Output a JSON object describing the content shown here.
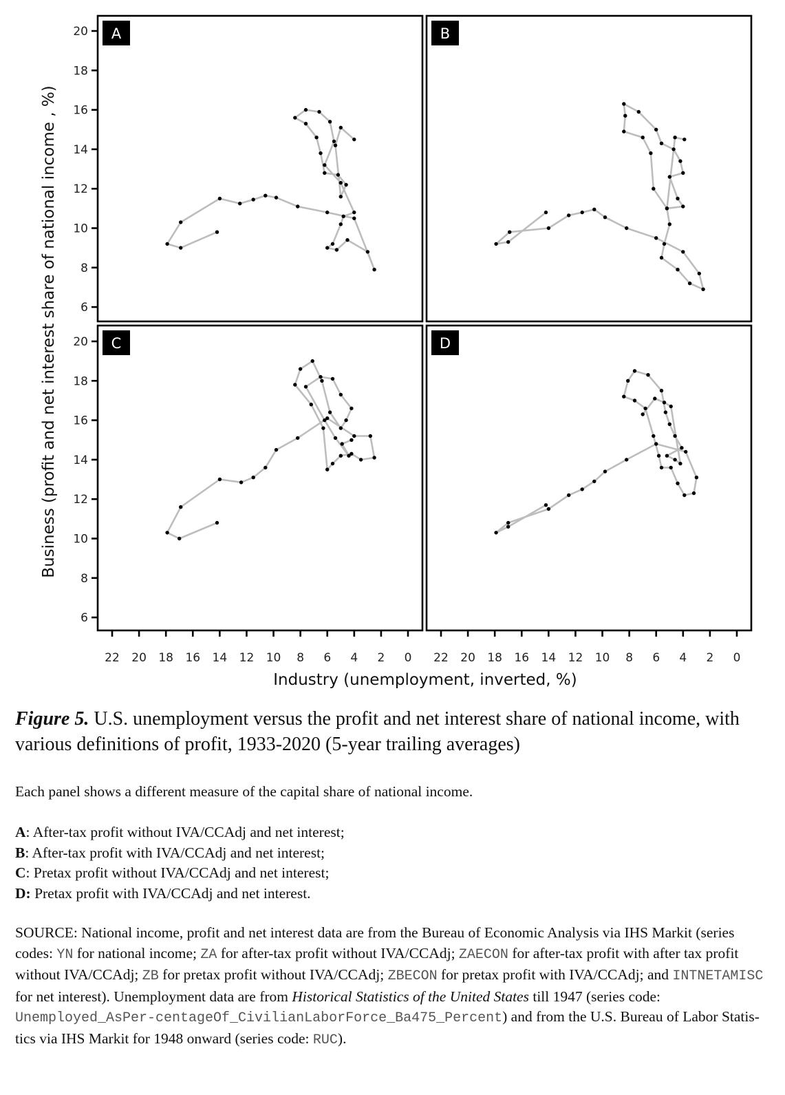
{
  "chart_data": {
    "type": "scatter",
    "layout": "2x2 panels",
    "xlabel": "Industry (unemployment, inverted, %)",
    "ylabel": "Business (profit and net interest share of national income , %)",
    "x_ticks": [
      22,
      20,
      18,
      16,
      14,
      12,
      10,
      8,
      6,
      4,
      2,
      0
    ],
    "y_ticks": [
      20,
      18,
      16,
      14,
      12,
      10,
      8,
      6
    ],
    "x_inverted": true,
    "xlim": [
      23,
      0
    ],
    "ylim": [
      5.5,
      20.5
    ],
    "grid": false,
    "marker_color": "#000000",
    "line_color": "#bdbdbd",
    "panels": [
      {
        "label": "A",
        "points": [
          [
            14.2,
            9.8
          ],
          [
            16.9,
            9.0
          ],
          [
            17.9,
            9.2
          ],
          [
            16.9,
            10.3
          ],
          [
            14.0,
            11.5
          ],
          [
            12.5,
            11.25
          ],
          [
            11.5,
            11.45
          ],
          [
            10.6,
            11.65
          ],
          [
            9.8,
            11.55
          ],
          [
            8.2,
            11.1
          ],
          [
            6.0,
            10.8
          ],
          [
            4.0,
            10.5
          ],
          [
            2.5,
            7.9
          ],
          [
            3.0,
            8.8
          ],
          [
            4.5,
            9.4
          ],
          [
            5.3,
            8.9
          ],
          [
            6.0,
            9.0
          ],
          [
            5.6,
            9.2
          ],
          [
            5.0,
            10.2
          ],
          [
            4.8,
            10.6
          ],
          [
            4.0,
            10.8
          ],
          [
            5.0,
            12.3
          ],
          [
            6.2,
            13.2
          ],
          [
            5.5,
            14.4
          ],
          [
            5.8,
            15.4
          ],
          [
            6.6,
            15.9
          ],
          [
            7.6,
            16.0
          ],
          [
            8.4,
            15.6
          ],
          [
            7.6,
            15.3
          ],
          [
            6.8,
            14.6
          ],
          [
            6.5,
            13.8
          ],
          [
            6.2,
            12.8
          ],
          [
            5.2,
            12.7
          ],
          [
            4.6,
            12.2
          ],
          [
            5.0,
            11.6
          ],
          [
            5.4,
            14.2
          ],
          [
            5.0,
            15.1
          ],
          [
            4.0,
            14.5
          ]
        ]
      },
      {
        "label": "B",
        "points": [
          [
            14.2,
            10.8
          ],
          [
            17.0,
            9.3
          ],
          [
            17.9,
            9.2
          ],
          [
            16.9,
            9.8
          ],
          [
            14.0,
            10.0
          ],
          [
            12.5,
            10.65
          ],
          [
            11.5,
            10.8
          ],
          [
            10.6,
            10.95
          ],
          [
            9.8,
            10.55
          ],
          [
            8.2,
            10.0
          ],
          [
            6.0,
            9.5
          ],
          [
            4.0,
            8.8
          ],
          [
            2.8,
            7.7
          ],
          [
            2.5,
            6.9
          ],
          [
            3.5,
            7.2
          ],
          [
            4.4,
            7.9
          ],
          [
            5.6,
            8.5
          ],
          [
            5.4,
            9.2
          ],
          [
            5.0,
            10.2
          ],
          [
            5.2,
            11.0
          ],
          [
            6.2,
            12.0
          ],
          [
            6.4,
            13.8
          ],
          [
            7.0,
            14.6
          ],
          [
            8.4,
            14.9
          ],
          [
            8.3,
            15.7
          ],
          [
            8.4,
            16.3
          ],
          [
            7.3,
            15.9
          ],
          [
            6.0,
            15.0
          ],
          [
            5.6,
            14.3
          ],
          [
            4.7,
            14.0
          ],
          [
            4.2,
            13.4
          ],
          [
            4.0,
            12.8
          ],
          [
            5.0,
            12.6
          ],
          [
            4.4,
            11.5
          ],
          [
            4.0,
            11.1
          ],
          [
            5.2,
            11.0
          ],
          [
            4.6,
            14.6
          ],
          [
            3.9,
            14.5
          ]
        ]
      },
      {
        "label": "C",
        "points": [
          [
            14.2,
            10.8
          ],
          [
            17.0,
            10.0
          ],
          [
            17.9,
            10.3
          ],
          [
            16.9,
            11.6
          ],
          [
            14.0,
            13.0
          ],
          [
            12.4,
            12.85
          ],
          [
            11.5,
            13.1
          ],
          [
            10.6,
            13.6
          ],
          [
            9.8,
            14.5
          ],
          [
            8.2,
            15.1
          ],
          [
            6.0,
            16.1
          ],
          [
            4.0,
            15.2
          ],
          [
            2.8,
            15.2
          ],
          [
            2.5,
            14.1
          ],
          [
            3.5,
            14.0
          ],
          [
            4.2,
            14.3
          ],
          [
            5.0,
            14.2
          ],
          [
            5.6,
            13.8
          ],
          [
            6.0,
            13.5
          ],
          [
            6.3,
            15.6
          ],
          [
            7.2,
            16.8
          ],
          [
            8.4,
            17.8
          ],
          [
            8.0,
            18.6
          ],
          [
            7.1,
            19.0
          ],
          [
            6.4,
            18.0
          ],
          [
            5.8,
            16.4
          ],
          [
            5.0,
            15.6
          ],
          [
            4.6,
            16.0
          ],
          [
            4.2,
            16.6
          ],
          [
            5.0,
            17.3
          ],
          [
            5.6,
            18.1
          ],
          [
            6.5,
            18.2
          ],
          [
            7.6,
            17.7
          ],
          [
            6.2,
            16.0
          ],
          [
            5.4,
            15.1
          ],
          [
            4.4,
            14.2
          ],
          [
            4.9,
            14.8
          ],
          [
            4.2,
            15.0
          ]
        ]
      },
      {
        "label": "D",
        "points": [
          [
            14.2,
            11.7
          ],
          [
            17.0,
            10.6
          ],
          [
            17.9,
            10.3
          ],
          [
            17.0,
            10.8
          ],
          [
            14.0,
            11.5
          ],
          [
            12.5,
            12.2
          ],
          [
            11.5,
            12.5
          ],
          [
            10.6,
            12.9
          ],
          [
            9.8,
            13.4
          ],
          [
            8.2,
            14.0
          ],
          [
            6.0,
            14.8
          ],
          [
            3.8,
            14.4
          ],
          [
            3.0,
            13.1
          ],
          [
            3.2,
            12.3
          ],
          [
            3.9,
            12.2
          ],
          [
            4.4,
            12.8
          ],
          [
            4.9,
            13.6
          ],
          [
            5.6,
            13.6
          ],
          [
            5.8,
            14.2
          ],
          [
            6.2,
            15.2
          ],
          [
            6.8,
            16.6
          ],
          [
            7.6,
            17.0
          ],
          [
            8.4,
            17.2
          ],
          [
            8.1,
            18.0
          ],
          [
            7.6,
            18.5
          ],
          [
            6.6,
            18.3
          ],
          [
            5.6,
            17.5
          ],
          [
            5.3,
            16.4
          ],
          [
            5.0,
            15.8
          ],
          [
            4.6,
            15.2
          ],
          [
            4.1,
            14.6
          ],
          [
            5.2,
            14.2
          ],
          [
            4.6,
            14.0
          ],
          [
            4.2,
            13.8
          ],
          [
            4.9,
            16.7
          ],
          [
            5.4,
            16.9
          ],
          [
            6.1,
            17.1
          ],
          [
            7.0,
            16.3
          ]
        ]
      }
    ]
  },
  "caption": {
    "figure_label": "Figure 5.",
    "title": " U.S. unemployment versus the profit and net interest share of national income, with various definitions of profit, 1933-2020 (5-year trailing averages)",
    "description": "Each panel shows a different measure of the capital share of national income.",
    "definitions": [
      {
        "key": "A",
        "text": ": After-tax profit without IVA/CCAdj and net interest;"
      },
      {
        "key": "B",
        "text": ": After-tax profit with IVA/CCAdj and net interest;"
      },
      {
        "key": "C",
        "text": ": Pretax profit without IVA/CCAdj and net interest;"
      },
      {
        "key": "D:",
        "text": " Pretax profit with IVA/CCAdj and net interest."
      }
    ],
    "source": {
      "s1": "SOURCE: National income, profit and net interest data are from the Bureau of Economic Analysis via IHS Markit (series codes: ",
      "c1": "YN",
      "s2": " for national income; ",
      "c2": "ZA",
      "s3": " for after-tax profit without IVA/CCAdj; ",
      "c3": "ZAECON",
      "s4": " for after-tax profit with after tax profit without IVA/CCAdj; ",
      "c4": "ZB",
      "s5": " for pretax profit without IVA/CCAdj; ",
      "c5": "ZBECON",
      "s6": " for pretax profit with IVA/CCAdj; and ",
      "c6": "INTNETAMISC",
      "s7": " for net interest). Unemployment data are from ",
      "italic": "Historical Statistics of the United States",
      "s8": " till 1947 (series code: ",
      "c7": "Unemployed_AsPer-centageOf_CivilianLaborForce_Ba475_Percent",
      "s9": ") and from the U.S. Bureau of Labor Statis-tics via IHS Markit for 1948 onward (series code: ",
      "c8": "RUC",
      "s10": ")."
    }
  }
}
